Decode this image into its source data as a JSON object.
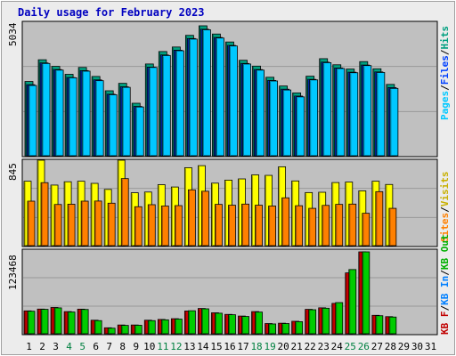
{
  "title": "Daily usage for February 2023",
  "colors": {
    "background": "#ececec",
    "plot": "#c0c0c0",
    "grid": "#999999",
    "title": "#0000c0",
    "hits": "#00a080",
    "files": "#0040ff",
    "pages": "#00c8ff",
    "visits": "#ffff00",
    "sites": "#ff8000",
    "kb_f": "#c00000",
    "kb_in": "#0080ff",
    "kb_out": "#00b000",
    "kb_f_bar": "#cc0000",
    "kb_out_bar": "#00cc00",
    "weekend_day": "#008040",
    "weekday": "#000000"
  },
  "labels": {
    "hits": "Hits",
    "files": "Files",
    "pages": "Pages",
    "visits": "Visits",
    "sites": "Sites",
    "kb_f": "KB F",
    "kb_in": "KB In",
    "kb_out": "KB Out",
    "slash": "/",
    "top_max": "5034",
    "mid_max": "845",
    "bot_max": "123468"
  },
  "chart_data": [
    {
      "type": "bar",
      "title": "Daily usage for February 2023",
      "x": [
        1,
        2,
        3,
        4,
        5,
        6,
        7,
        8,
        9,
        10,
        11,
        12,
        13,
        14,
        15,
        16,
        17,
        18,
        19,
        20,
        21,
        22,
        23,
        24,
        25,
        26,
        27,
        28,
        29,
        30,
        31
      ],
      "weekend_days": [
        4,
        5,
        11,
        12,
        18,
        19,
        25,
        26
      ],
      "ylim": [
        0,
        5034
      ],
      "series": [
        {
          "name": "Hits",
          "values": [
            2800,
            3620,
            3370,
            3070,
            3330,
            2990,
            2450,
            2730,
            1980,
            3460,
            3930,
            4100,
            4540,
            4900,
            4590,
            4290,
            3600,
            3380,
            2960,
            2630,
            2370,
            3000,
            3660,
            3430,
            3270,
            3550,
            3280,
            2690,
            null,
            null,
            null
          ]
        },
        {
          "name": "Files",
          "values": [
            2680,
            3500,
            3250,
            2950,
            3210,
            2860,
            2320,
            2600,
            1860,
            3340,
            3800,
            3980,
            4420,
            4770,
            4460,
            4160,
            3480,
            3250,
            2840,
            2510,
            2250,
            2880,
            3530,
            3310,
            3150,
            3420,
            3160,
            2570,
            null,
            null,
            null
          ]
        },
        {
          "name": "Pages",
          "values": [
            2650,
            3480,
            3230,
            2940,
            3190,
            2830,
            2300,
            2580,
            1840,
            3330,
            3780,
            3960,
            4400,
            4750,
            4440,
            4140,
            3460,
            3230,
            2820,
            2480,
            2220,
            2860,
            3510,
            3290,
            3130,
            3400,
            3140,
            2540,
            null,
            null,
            null
          ]
        }
      ]
    },
    {
      "type": "bar",
      "x": [
        1,
        2,
        3,
        4,
        5,
        6,
        7,
        8,
        9,
        10,
        11,
        12,
        13,
        14,
        15,
        16,
        17,
        18,
        19,
        20,
        21,
        22,
        23,
        24,
        25,
        26,
        27,
        28,
        29,
        30,
        31
      ],
      "ylim": [
        0,
        845
      ],
      "series": [
        {
          "name": "Visits",
          "values": [
            637,
            845,
            599,
            632,
            637,
            616,
            556,
            845,
            523,
            530,
            603,
            580,
            771,
            791,
            618,
            648,
            660,
            700,
            695,
            780,
            640,
            525,
            528,
            624,
            629,
            542,
            637,
            605,
            null,
            null,
            null
          ]
        },
        {
          "name": "Sites",
          "values": [
            440,
            623,
            407,
            410,
            440,
            441,
            420,
            663,
            385,
            405,
            392,
            396,
            552,
            538,
            408,
            400,
            411,
            400,
            392,
            473,
            395,
            369,
            398,
            408,
            411,
            320,
            534,
            369,
            null,
            null,
            null
          ]
        }
      ]
    },
    {
      "type": "bar",
      "x": [
        1,
        2,
        3,
        4,
        5,
        6,
        7,
        8,
        9,
        10,
        11,
        12,
        13,
        14,
        15,
        16,
        17,
        18,
        19,
        20,
        21,
        22,
        23,
        24,
        25,
        26,
        27,
        28,
        29,
        30,
        31
      ],
      "ylim": [
        0,
        123468
      ],
      "series": [
        {
          "name": "KB F",
          "values": [
            34500,
            37200,
            39600,
            33400,
            37100,
            20400,
            9000,
            13200,
            13200,
            20400,
            21600,
            22700,
            34300,
            38100,
            31600,
            29200,
            26700,
            33400,
            15400,
            15900,
            18800,
            36800,
            39100,
            45800,
            91800,
            123468,
            27800,
            25800,
            null,
            null,
            null
          ]
        },
        {
          "name": "KB In",
          "values": [
            null,
            null,
            null,
            null,
            null,
            null,
            null,
            null,
            null,
            null,
            null,
            null,
            null,
            null,
            null,
            null,
            null,
            null,
            null,
            null,
            null,
            null,
            null,
            null,
            null,
            null,
            null,
            null,
            null,
            null,
            null
          ]
        },
        {
          "name": "KB Out",
          "values": [
            34000,
            36800,
            39000,
            32800,
            36600,
            19800,
            8400,
            12600,
            12800,
            19800,
            21000,
            22100,
            34700,
            37600,
            31000,
            28700,
            26100,
            32700,
            14800,
            15400,
            18200,
            36200,
            38500,
            47000,
            96800,
            123468,
            27200,
            25200,
            null,
            null,
            null
          ]
        }
      ]
    }
  ]
}
